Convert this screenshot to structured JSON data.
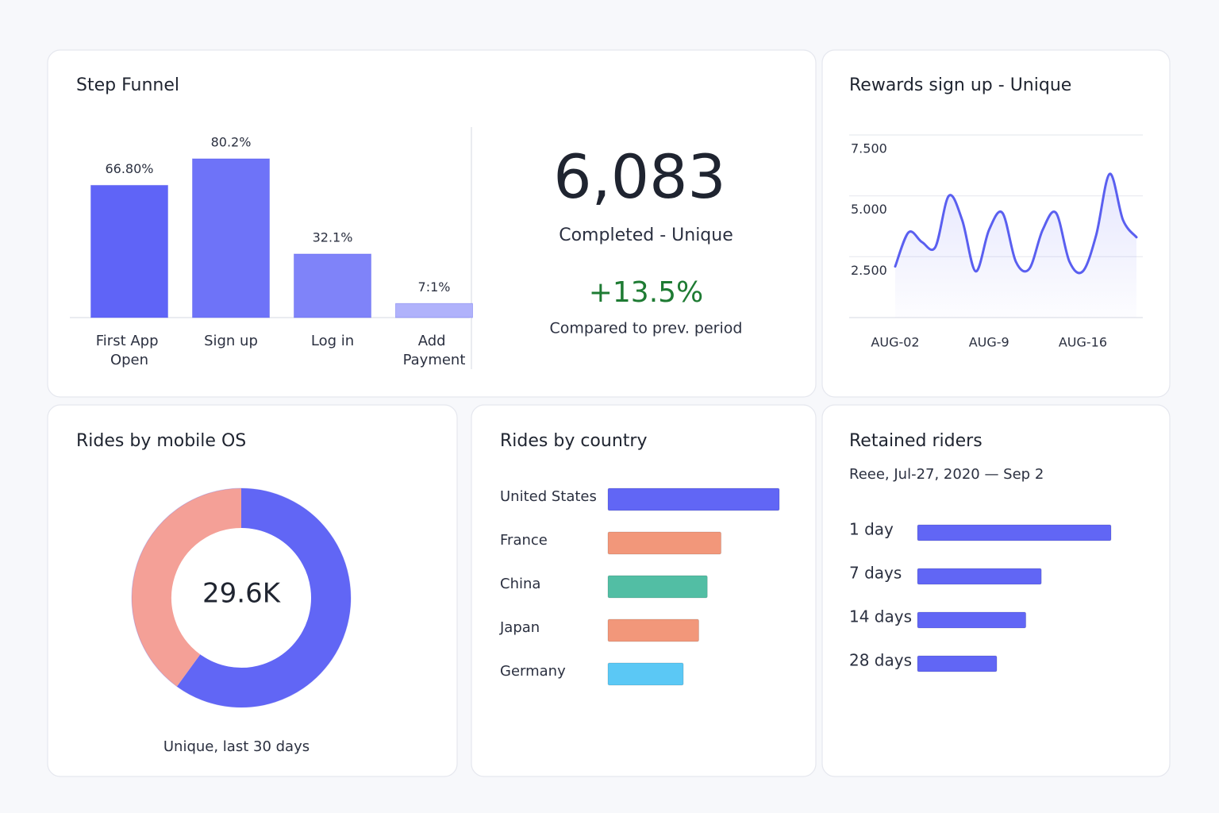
{
  "chart_data": [
    {
      "type": "bar",
      "title": "Step Funnel",
      "categories": [
        "First App Open",
        "Sign up",
        "Log in",
        "Add Payment"
      ],
      "values": [
        66.8,
        80.2,
        32.1,
        7.1
      ],
      "value_labels": [
        "66.80%",
        "80.2%",
        "32.1%",
        "7:1%"
      ],
      "colors": [
        "#5f64f7",
        "#6e73f8",
        "#7f83f9",
        "#b0b2fb"
      ]
    },
    {
      "type": "line",
      "title": "Rewards sign up - Unique",
      "categories": [
        "AUG-02",
        null,
        null,
        null,
        null,
        null,
        null,
        "AUG-9",
        null,
        null,
        null,
        null,
        null,
        null,
        "AUG-16",
        null,
        null,
        null,
        null
      ],
      "values": [
        2100,
        3500,
        3100,
        2900,
        5000,
        4000,
        1900,
        3600,
        4300,
        2300,
        2000,
        3600,
        4300,
        2300,
        1900,
        3400,
        5900,
        4000,
        3300
      ],
      "color": "#5a5ff0",
      "ylim": [
        0,
        7500
      ],
      "yticks": [
        {
          "value": 2500,
          "label": "2.500"
        },
        {
          "value": 5000,
          "label": "5.000"
        },
        {
          "value": 7500,
          "label": "7.500"
        }
      ],
      "grid": true
    },
    {
      "type": "pie",
      "title": "Rides by mobile OS",
      "donut": true,
      "values": [
        60,
        40
      ],
      "colors": [
        "#6166f5",
        "#f4a097"
      ],
      "center_label": "29.6K",
      "caption": "Unique, last 30 days"
    },
    {
      "type": "hbar",
      "title": "Rides by country",
      "categories": [
        "United States",
        "France",
        "China",
        "Japan",
        "Germany"
      ],
      "values": [
        100,
        66,
        58,
        53,
        44
      ],
      "colors": [
        "#6166f5",
        "#f2977a",
        "#52bea4",
        "#f2977a",
        "#5bc8f5"
      ]
    },
    {
      "type": "hbar",
      "title": "Retained riders",
      "subtitle": "Reee, Jul-27, 2020 — Sep 2",
      "categories": [
        "1 day",
        "7 days",
        "14 days",
        "28 days"
      ],
      "values": [
        100,
        64,
        56,
        41
      ],
      "color": "#6166f5"
    }
  ],
  "kpi": {
    "value": "6,083",
    "label": "Completed - Unique",
    "change": "+13.5%",
    "note": "Compared to prev. period"
  }
}
